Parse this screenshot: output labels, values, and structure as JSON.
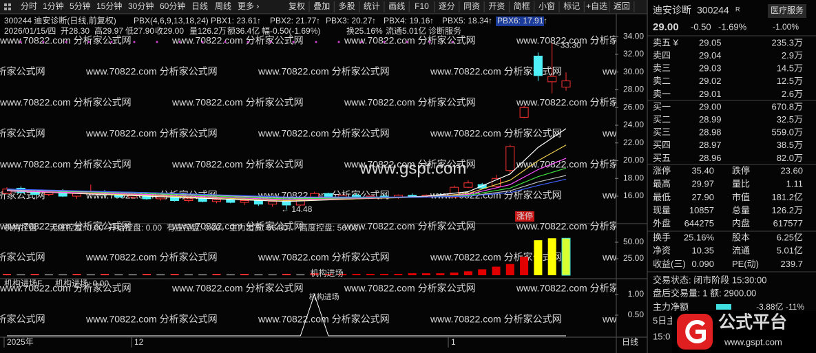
{
  "toolbar": {
    "periods": [
      "分时",
      "1分钟",
      "5分钟",
      "15分钟",
      "30分钟",
      "60分钟",
      "日线",
      "周线",
      "更多 ›"
    ],
    "active": 6,
    "tools": [
      "复权",
      "叠加",
      "多股",
      "统计",
      "画线",
      "F10",
      "逐分",
      "同资",
      "开资",
      "简框",
      "小窗",
      "标记",
      "+自选",
      "返回"
    ]
  },
  "header": {
    "title": "300244 迪安诊断(日线,前复权)",
    "indicator": "PBX(4,6,9,13,18,24)",
    "pbx": [
      {
        "text": "PBX1: 23.61",
        "arrow": "↑"
      },
      {
        "text": "PBX2: 21.77",
        "arrow": "↑"
      },
      {
        "text": "PBX3: 20.27",
        "arrow": "↑"
      },
      {
        "text": "PBX4: 19.16",
        "arrow": "↑"
      },
      {
        "text": "PBX5: 18.34",
        "arrow": "↑"
      },
      {
        "text": "PBX6: 17.91",
        "arrow": "↑"
      }
    ],
    "quote": [
      "2026/01/15/四",
      "开28.30",
      "高29.97",
      "低27.90",
      "收29.00",
      "量126.2万",
      "额36.4亿",
      "幅-0.50(-1.69%)",
      "换25.16%",
      "流通5.01亿",
      "诊断服务"
    ]
  },
  "watermark": "www.70822.com 分析家公式网",
  "center_mark": "www.gspt.com",
  "main": {
    "ylim": [
      12.9,
      34.4
    ],
    "yticks": [
      {
        "value": 16,
        "label": "16.00"
      },
      {
        "value": 18,
        "label": "18.00"
      },
      {
        "value": 20,
        "label": "20.00"
      },
      {
        "value": 22,
        "label": "22.00"
      },
      {
        "value": 24,
        "label": "24.00"
      },
      {
        "value": 26,
        "label": "26.00"
      },
      {
        "value": 28,
        "label": "28.00"
      },
      {
        "value": 30,
        "label": "30.00"
      },
      {
        "value": 32,
        "label": "32.00"
      },
      {
        "value": 34,
        "label": "34.00"
      }
    ],
    "candles": [
      [
        16.3,
        17.0,
        16.2,
        16.8
      ],
      [
        16.9,
        17.1,
        16.3,
        16.4
      ],
      [
        16.4,
        16.6,
        16.1,
        16.2
      ],
      [
        16.2,
        16.6,
        16.0,
        16.5
      ],
      [
        16.5,
        16.8,
        15.9,
        16.0
      ],
      [
        16.0,
        16.4,
        15.7,
        16.3
      ],
      [
        16.3,
        17.3,
        16.1,
        16.5
      ],
      [
        16.5,
        16.7,
        16.0,
        16.2
      ],
      [
        16.2,
        16.4,
        15.8,
        15.9
      ],
      [
        15.9,
        16.3,
        15.7,
        16.2
      ],
      [
        16.2,
        16.3,
        15.6,
        15.7
      ],
      [
        15.7,
        16.0,
        15.5,
        15.9
      ],
      [
        15.9,
        16.0,
        15.4,
        15.5
      ],
      [
        15.5,
        15.8,
        15.3,
        15.7
      ],
      [
        15.7,
        15.9,
        15.3,
        15.4
      ],
      [
        15.4,
        15.7,
        15.2,
        15.6
      ],
      [
        15.6,
        15.8,
        15.2,
        15.3
      ],
      [
        15.3,
        15.6,
        15.0,
        15.5
      ],
      [
        15.5,
        15.6,
        14.9,
        15.1
      ],
      [
        15.1,
        15.5,
        14.8,
        15.4
      ],
      [
        15.4,
        15.5,
        14.48,
        15.0
      ],
      [
        15.0,
        15.8,
        14.9,
        15.7
      ],
      [
        15.7,
        16.5,
        15.6,
        16.3
      ],
      [
        16.3,
        16.4,
        15.7,
        15.8
      ],
      [
        15.8,
        16.2,
        15.6,
        16.1
      ],
      [
        16.1,
        16.3,
        15.8,
        15.9
      ],
      [
        15.9,
        16.1,
        15.7,
        16.0
      ],
      [
        16.0,
        16.2,
        15.8,
        15.9
      ],
      [
        15.9,
        16.2,
        15.7,
        16.1
      ],
      [
        16.1,
        16.3,
        15.9,
        16.0
      ],
      [
        16.0,
        16.2,
        15.8,
        16.1
      ],
      [
        16.1,
        16.3,
        15.9,
        16.0
      ],
      [
        15.9,
        17.2,
        15.8,
        17.0
      ],
      [
        17.0,
        17.8,
        16.9,
        17.5
      ],
      [
        17.3,
        17.5,
        16.8,
        16.9
      ],
      [
        17.1,
        18.4,
        17.0,
        18.0
      ],
      [
        18.9,
        21.8,
        18.6,
        21.6
      ],
      [
        24.9,
        26.2,
        24.8,
        26.0
      ],
      [
        31.8,
        32.2,
        29.0,
        29.6
      ],
      [
        28.9,
        33.3,
        27.6,
        29.5
      ],
      [
        28.3,
        29.97,
        27.9,
        29.0
      ]
    ],
    "lines": [
      {
        "color": "#ffffff",
        "x": [
          0,
          10,
          20,
          30,
          33,
          36,
          38,
          40
        ],
        "values": [
          16.6,
          16.0,
          15.4,
          16.0,
          16.5,
          18.5,
          21.5,
          23.61
        ]
      },
      {
        "color": "#f0d050",
        "x": [
          0,
          10,
          20,
          30,
          33,
          36,
          38,
          40
        ],
        "values": [
          16.6,
          16.1,
          15.5,
          15.9,
          16.3,
          17.8,
          20.0,
          21.77
        ]
      },
      {
        "color": "#ff50ff",
        "x": [
          0,
          10,
          20,
          30,
          33,
          36,
          38,
          40
        ],
        "values": [
          16.6,
          16.2,
          15.6,
          15.9,
          16.2,
          17.3,
          19.0,
          20.27
        ]
      },
      {
        "color": "#40e040",
        "x": [
          0,
          10,
          20,
          30,
          33,
          36,
          38,
          40
        ],
        "values": [
          16.7,
          16.3,
          15.7,
          15.9,
          16.1,
          16.9,
          18.2,
          19.16
        ]
      },
      {
        "color": "#c0c0c0",
        "x": [
          0,
          10,
          20,
          30,
          33,
          36,
          38,
          40
        ],
        "values": [
          16.7,
          16.4,
          15.8,
          15.9,
          16.0,
          16.6,
          17.6,
          18.34
        ]
      },
      {
        "color": "#4060ff",
        "x": [
          0,
          10,
          20,
          30,
          33,
          36,
          38,
          40
        ],
        "values": [
          16.8,
          16.4,
          15.9,
          15.9,
          16.0,
          16.4,
          17.2,
          17.91
        ]
      }
    ],
    "high_label": "33.30",
    "low_label": "← 14.48",
    "badge": "涨停"
  },
  "panel2": {
    "title": "机构控盘",
    "items": [
      "无庄控盘: 0.00",
      "开始控盘: 0.00",
      "有庄控盘: 0.00↓",
      "主力出货: 56.00↓",
      "高度控盘: 56.00↓"
    ],
    "ylim": [
      -5.2,
      62.5
    ],
    "yticks": [
      {
        "value": 25,
        "label": "25.00"
      },
      {
        "value": 50,
        "label": "50.00"
      }
    ],
    "values": [
      2,
      1,
      2,
      1,
      1,
      2,
      1,
      2,
      1,
      1,
      2,
      1,
      2,
      1,
      1,
      2,
      1,
      2,
      1,
      1,
      2,
      1,
      3,
      2,
      2,
      2,
      2,
      2,
      2,
      3,
      3,
      3,
      4,
      6,
      9,
      13,
      17,
      28,
      53,
      56,
      56
    ],
    "colors": [
      "#ff3030",
      "#ffffff",
      "#ff3030",
      "#ffffff",
      "#ffffff",
      "#ff3030",
      "#ffffff",
      "#ff3030",
      "#ffffff",
      "#ffffff",
      "#ff3030",
      "#ffffff",
      "#ff3030",
      "#ffffff",
      "#ffffff",
      "#ff3030",
      "#ffffff",
      "#ff3030",
      "#ffffff",
      "#ffffff",
      "#ff3030",
      "#ffffff",
      "#e00000",
      "#e00000",
      "#e00000",
      "#e00000",
      "#e00000",
      "#e00000",
      "#e00000",
      "#e00000",
      "#e00000",
      "#e00000",
      "#e00000",
      "#e00000",
      "#e00000",
      "#e00000",
      "#e00000",
      "#e00000",
      "#ffff00",
      "#ffff00",
      "#d8ff30"
    ],
    "annotation": "机构进场"
  },
  "panel3": {
    "title": "机构进场F",
    "items": [
      "机构进场: 0.00"
    ],
    "ylim": [
      -0.033,
      1.133
    ],
    "yticks": [
      {
        "value": 0.5,
        "label": "0.50"
      },
      {
        "value": 1,
        "label": "1.00"
      }
    ],
    "values": [
      0,
      0,
      0,
      0,
      0,
      0,
      0,
      0,
      0,
      0,
      0,
      0,
      0,
      0,
      0,
      0,
      0,
      0,
      0,
      0,
      0,
      0,
      1,
      0,
      0,
      0,
      0,
      0,
      0,
      0,
      0,
      0,
      0,
      0,
      0,
      0,
      0,
      0,
      0,
      0,
      0
    ],
    "annotation": "机构进场"
  },
  "xaxis": {
    "labels": [
      "2025年",
      "12",
      "1"
    ],
    "period": "日线"
  },
  "quote_panel": {
    "name": "迪安诊断",
    "code": "300244",
    "tag": "R",
    "industry": "医疗服务",
    "industry_change": "-1.00%",
    "price": "29.00",
    "change": "-0.50",
    "change_pct": "-1.69%",
    "asks": [
      [
        "卖五 ¥",
        "29.05",
        "235.3万"
      ],
      [
        "卖四",
        "29.04",
        "2.9万"
      ],
      [
        "卖三",
        "29.03",
        "14.5万"
      ],
      [
        "卖二",
        "29.02",
        "12.5万"
      ],
      [
        "卖一",
        "29.01",
        "2.6万"
      ]
    ],
    "bids": [
      [
        "买一",
        "29.00",
        "670.8万"
      ],
      [
        "买二",
        "28.99",
        "32.5万"
      ],
      [
        "买三",
        "28.98",
        "559.0万"
      ],
      [
        "买四",
        "28.97",
        "38.5万"
      ],
      [
        "买五",
        "28.96",
        "82.0万"
      ]
    ],
    "stats": [
      [
        "涨停",
        "35.40",
        "跌停",
        "23.60"
      ],
      [
        "最高",
        "29.97",
        "量比",
        "1.11"
      ],
      [
        "最低",
        "27.90",
        "市值",
        "181.2亿"
      ],
      [
        "现量",
        "10857",
        "总量",
        "126.2万"
      ],
      [
        "外盘",
        "644275",
        "内盘",
        "617577"
      ]
    ],
    "stats2": [
      [
        "换手",
        "25.16%",
        "股本",
        "6.25亿"
      ],
      [
        "净资",
        "10.35",
        "流通",
        "5.01亿"
      ],
      [
        "收益(三)",
        "0.090",
        "PE(动)",
        "239.7"
      ]
    ],
    "status": "交易状态: 闭市阶段 15:30:00",
    "after": "盘后交易量: 1 额: 2900.00",
    "flow": "主力净额",
    "flow_value": "-3.88亿 -11%",
    "flow2": "5日主",
    "time": "15:0"
  },
  "logo": {
    "text": "公式平台",
    "url": "www.gspt.com"
  }
}
